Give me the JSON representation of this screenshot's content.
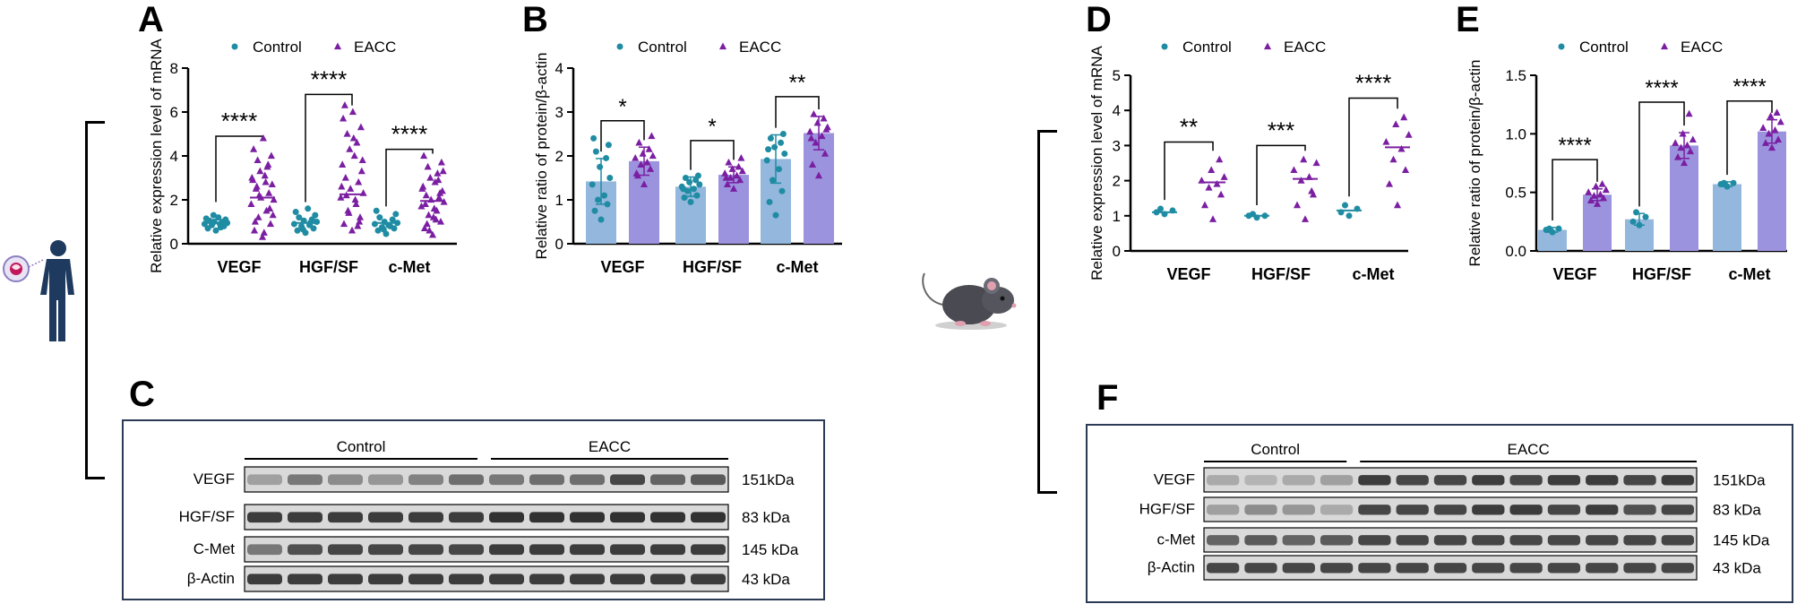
{
  "colors": {
    "control": "#1f8ca3",
    "eacc": "#7b1fa2",
    "control_bar": "#94b7dd",
    "eacc_bar": "#9b93de",
    "frame": "#2b3a55"
  },
  "legend": {
    "control": "Control",
    "eacc": "EACC"
  },
  "panels": {
    "A": "A",
    "B": "B",
    "C": "C",
    "D": "D",
    "E": "E",
    "F": "F"
  },
  "icons": {
    "human": "human-silhouette-icon",
    "mouse": "mouse-icon"
  },
  "chart_data": [
    {
      "id": "A",
      "type": "scatter",
      "title": "",
      "ylabel": "Relative expression level of mRNA",
      "ylim": [
        0,
        8
      ],
      "yticks": [
        0,
        2,
        4,
        6,
        8
      ],
      "yticklabels": [
        "0",
        "2",
        "4",
        "6",
        "8"
      ],
      "categories": [
        "VEGF",
        "HGF/SF",
        "c-Met"
      ],
      "series": [
        {
          "name": "Control",
          "marker": "circle",
          "values": [
            [
              0.6,
              0.7,
              0.8,
              0.85,
              0.9,
              0.9,
              0.95,
              1.0,
              1.0,
              1.05,
              1.1,
              1.15,
              1.2,
              1.3,
              0.75
            ],
            [
              0.5,
              0.6,
              0.7,
              0.8,
              0.85,
              0.9,
              1.0,
              1.05,
              1.1,
              1.2,
              1.3,
              1.45,
              1.6,
              0.65,
              0.95
            ],
            [
              0.45,
              0.6,
              0.7,
              0.75,
              0.8,
              0.9,
              0.95,
              1.0,
              1.1,
              1.2,
              1.35,
              1.5,
              0.85,
              0.65
            ]
          ],
          "means": [
            0.95,
            0.95,
            0.95
          ]
        },
        {
          "name": "EACC",
          "marker": "triangle",
          "values": [
            [
              0.3,
              0.6,
              0.9,
              1.2,
              1.5,
              1.8,
              2.0,
              2.1,
              2.3,
              2.5,
              2.7,
              2.9,
              3.1,
              3.3,
              3.5,
              3.8,
              4.0,
              4.3,
              4.8,
              1.0,
              1.6,
              2.2,
              2.8,
              3.0,
              1.3,
              0.5,
              2.6,
              3.6
            ],
            [
              0.6,
              0.9,
              1.2,
              1.5,
              1.8,
              2.1,
              2.3,
              2.5,
              2.8,
              3.0,
              3.3,
              3.6,
              4.0,
              4.3,
              4.6,
              5.0,
              5.3,
              5.7,
              6.0,
              6.3,
              1.0,
              1.4,
              2.0,
              2.6,
              3.8,
              4.8,
              2.2,
              0.8
            ],
            [
              0.4,
              0.7,
              1.0,
              1.3,
              1.5,
              1.7,
              1.9,
              2.0,
              2.1,
              2.2,
              2.4,
              2.6,
              2.8,
              3.0,
              3.2,
              3.5,
              3.7,
              4.0,
              1.2,
              1.8,
              2.3,
              0.6,
              1.1,
              2.5,
              3.3,
              1.6,
              0.9,
              2.9
            ]
          ],
          "means": [
            2.1,
            2.25,
            1.95
          ]
        }
      ],
      "significance": [
        "****",
        "****",
        "****"
      ],
      "sig_bracket_y": [
        4.9,
        6.8,
        4.3
      ],
      "sig_bracket_low": [
        [
          1.9,
          4.9
        ],
        [
          1.9,
          6.3
        ],
        [
          1.7,
          4.1
        ]
      ]
    },
    {
      "id": "B",
      "type": "bar",
      "ylabel": "Relative ratio of protein/β-actin",
      "ylim": [
        0,
        4
      ],
      "yticks": [
        0,
        1,
        2,
        3,
        4
      ],
      "yticklabels": [
        "0",
        "1",
        "2",
        "3",
        "4"
      ],
      "categories": [
        "VEGF",
        "HGF/SF",
        "c-Met"
      ],
      "series": [
        {
          "name": "Control",
          "values": [
            1.42,
            1.3,
            1.93
          ],
          "errors": [
            0.52,
            0.22,
            0.55
          ],
          "points": [
            [
              0.55,
              0.75,
              0.9,
              1.0,
              1.1,
              1.35,
              1.5,
              1.75,
              1.95,
              2.1,
              2.25,
              2.4
            ],
            [
              0.95,
              1.05,
              1.1,
              1.2,
              1.25,
              1.3,
              1.35,
              1.4,
              1.45,
              1.5,
              1.55,
              1.25
            ],
            [
              0.65,
              0.95,
              1.2,
              1.45,
              1.7,
              1.9,
              2.05,
              2.2,
              2.3,
              2.4,
              2.5,
              2.15
            ]
          ]
        },
        {
          "name": "EACC",
          "values": [
            1.88,
            1.57,
            2.52
          ],
          "errors": [
            0.32,
            0.18,
            0.38
          ],
          "points": [
            [
              1.35,
              1.55,
              1.7,
              1.8,
              1.85,
              1.95,
              2.0,
              2.05,
              2.15,
              2.3,
              2.45,
              1.6
            ],
            [
              1.25,
              1.35,
              1.45,
              1.5,
              1.55,
              1.6,
              1.65,
              1.7,
              1.75,
              1.85,
              1.95,
              1.5
            ],
            [
              1.55,
              1.8,
              2.05,
              2.3,
              2.45,
              2.55,
              2.65,
              2.75,
              2.85,
              2.95,
              2.6,
              2.4
            ]
          ]
        }
      ],
      "significance": [
        "*",
        "*",
        "**"
      ],
      "sig_bracket_y": [
        2.8,
        2.35,
        3.35
      ]
    },
    {
      "id": "D",
      "type": "scatter",
      "ylabel": "Relative expression level of mRNA",
      "ylim": [
        0,
        5
      ],
      "yticks": [
        0,
        1,
        2,
        3,
        4,
        5
      ],
      "yticklabels": [
        "0",
        "1",
        "2",
        "3",
        "4",
        "5"
      ],
      "categories": [
        "VEGF",
        "HGF/SF",
        "c-Met"
      ],
      "series": [
        {
          "name": "Control",
          "marker": "circle",
          "values": [
            [
              1.05,
              1.1,
              1.15,
              1.2
            ],
            [
              0.95,
              1.0,
              1.0,
              1.05
            ],
            [
              1.0,
              1.1,
              1.2,
              1.3
            ]
          ],
          "means": [
            1.1,
            1.0,
            1.15
          ]
        },
        {
          "name": "EACC",
          "marker": "triangle",
          "values": [
            [
              0.9,
              1.3,
              1.6,
              1.8,
              1.9,
              2.0,
              2.1,
              2.3,
              2.6
            ],
            [
              0.9,
              1.3,
              1.6,
              2.0,
              2.1,
              2.3,
              2.5,
              2.6,
              1.7
            ],
            [
              1.3,
              1.9,
              2.3,
              2.6,
              2.9,
              3.1,
              3.3,
              3.6,
              3.8
            ]
          ],
          "means": [
            1.95,
            2.05,
            2.95
          ]
        }
      ],
      "significance": [
        "**",
        "***",
        "****"
      ],
      "sig_bracket_y": [
        3.1,
        3.0,
        4.35
      ]
    },
    {
      "id": "E",
      "type": "bar",
      "ylabel": "Relative ratio of protein/β-actin",
      "ylim": [
        0,
        1.5
      ],
      "yticks": [
        0,
        0.5,
        1.0,
        1.5
      ],
      "yticklabels": [
        "0.0",
        "0.5",
        "1.0",
        "1.5"
      ],
      "categories": [
        "VEGF",
        "HGF/SF",
        "c-Met"
      ],
      "series": [
        {
          "name": "Control",
          "values": [
            0.18,
            0.27,
            0.57
          ],
          "errors": [
            0.02,
            0.05,
            0.02
          ],
          "points": [
            [
              0.16,
              0.18,
              0.19,
              0.19
            ],
            [
              0.22,
              0.25,
              0.29,
              0.33
            ],
            [
              0.55,
              0.57,
              0.58,
              0.58
            ]
          ]
        },
        {
          "name": "EACC",
          "values": [
            0.48,
            0.9,
            1.02
          ],
          "errors": [
            0.05,
            0.11,
            0.1
          ],
          "points": [
            [
              0.4,
              0.43,
              0.45,
              0.47,
              0.48,
              0.5,
              0.52,
              0.55,
              0.57
            ],
            [
              0.75,
              0.8,
              0.85,
              0.88,
              0.9,
              0.92,
              0.95,
              1.0,
              1.17
            ],
            [
              0.88,
              0.92,
              0.95,
              1.0,
              1.03,
              1.05,
              1.1,
              1.15,
              1.18
            ]
          ]
        }
      ],
      "significance": [
        "****",
        "****",
        "****"
      ],
      "sig_bracket_y": [
        0.78,
        1.27,
        1.28
      ]
    }
  ],
  "blots": {
    "C": {
      "group_labels": [
        "Control",
        "EACC"
      ],
      "rows": [
        {
          "name": "VEGF",
          "size": "151kDa"
        },
        {
          "name": "HGF/SF",
          "size": "83 kDa"
        },
        {
          "name": "C-Met",
          "size": "145 kDa"
        },
        {
          "name": "β-Actin",
          "size": "43 kDa"
        }
      ],
      "lanes": 12,
      "control_lanes": 6,
      "intensity": [
        [
          0.35,
          0.55,
          0.45,
          0.4,
          0.5,
          0.6,
          0.55,
          0.6,
          0.6,
          0.8,
          0.65,
          0.7
        ],
        [
          0.85,
          0.85,
          0.85,
          0.85,
          0.85,
          0.85,
          0.9,
          0.9,
          0.9,
          0.9,
          0.9,
          0.9
        ],
        [
          0.55,
          0.75,
          0.8,
          0.8,
          0.8,
          0.8,
          0.85,
          0.85,
          0.85,
          0.85,
          0.85,
          0.85
        ],
        [
          0.85,
          0.85,
          0.85,
          0.85,
          0.85,
          0.85,
          0.85,
          0.85,
          0.85,
          0.85,
          0.85,
          0.85
        ]
      ]
    },
    "F": {
      "group_labels": [
        "Control",
        "EACC"
      ],
      "rows": [
        {
          "name": "VEGF",
          "size": "151kDa"
        },
        {
          "name": "HGF/SF",
          "size": "83 kDa"
        },
        {
          "name": "c-Met",
          "size": "145 kDa"
        },
        {
          "name": "β-Actin",
          "size": "43 kDa"
        }
      ],
      "lanes": 13,
      "control_lanes": 4,
      "intensity": [
        [
          0.3,
          0.25,
          0.3,
          0.35,
          0.85,
          0.8,
          0.8,
          0.85,
          0.8,
          0.85,
          0.85,
          0.8,
          0.85
        ],
        [
          0.35,
          0.45,
          0.4,
          0.3,
          0.8,
          0.8,
          0.8,
          0.85,
          0.85,
          0.8,
          0.85,
          0.75,
          0.8
        ],
        [
          0.65,
          0.7,
          0.65,
          0.7,
          0.8,
          0.8,
          0.8,
          0.8,
          0.8,
          0.8,
          0.8,
          0.8,
          0.8
        ],
        [
          0.8,
          0.8,
          0.8,
          0.8,
          0.8,
          0.8,
          0.8,
          0.8,
          0.8,
          0.8,
          0.8,
          0.8,
          0.8
        ]
      ]
    }
  }
}
